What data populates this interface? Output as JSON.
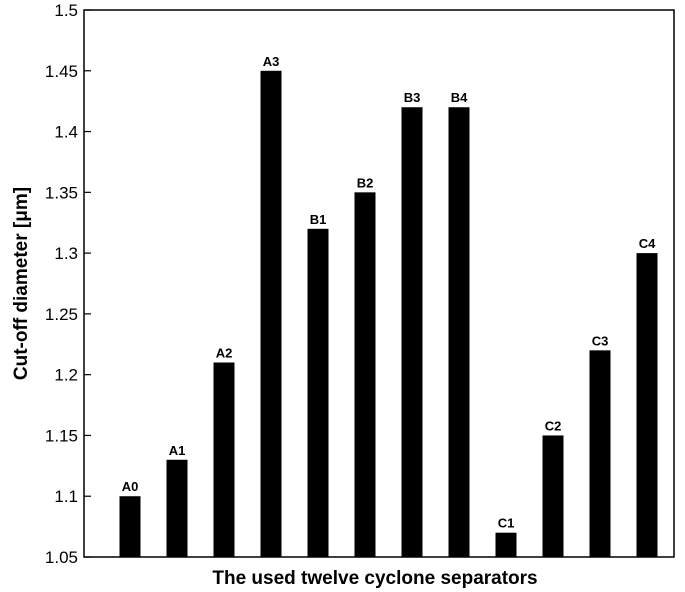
{
  "chart_data": {
    "type": "bar",
    "title": "",
    "xlabel": "The used twelve cyclone separators",
    "ylabel": "Cut-off diameter [μm]",
    "ylim": [
      1.05,
      1.5
    ],
    "yticks": [
      1.05,
      1.1,
      1.15,
      1.2,
      1.25,
      1.3,
      1.35,
      1.4,
      1.45,
      1.5
    ],
    "ytick_labels": [
      "1.05",
      "1.1",
      "1.15",
      "1.2",
      "1.25",
      "1.3",
      "1.35",
      "1.4",
      "1.45",
      "1.5"
    ],
    "grid": false,
    "categories": [
      "A0",
      "A1",
      "A2",
      "A3",
      "B1",
      "B2",
      "B3",
      "B4",
      "C1",
      "C2",
      "C3",
      "C4"
    ],
    "values": [
      1.1,
      1.13,
      1.21,
      1.45,
      1.32,
      1.35,
      1.42,
      1.42,
      1.07,
      1.15,
      1.22,
      1.3
    ],
    "bar_color": "#000000",
    "data_labels": [
      "A0",
      "A1",
      "A2",
      "A3",
      "B1",
      "B2",
      "B3",
      "B4",
      "C1",
      "C2",
      "C3",
      "C4"
    ]
  }
}
